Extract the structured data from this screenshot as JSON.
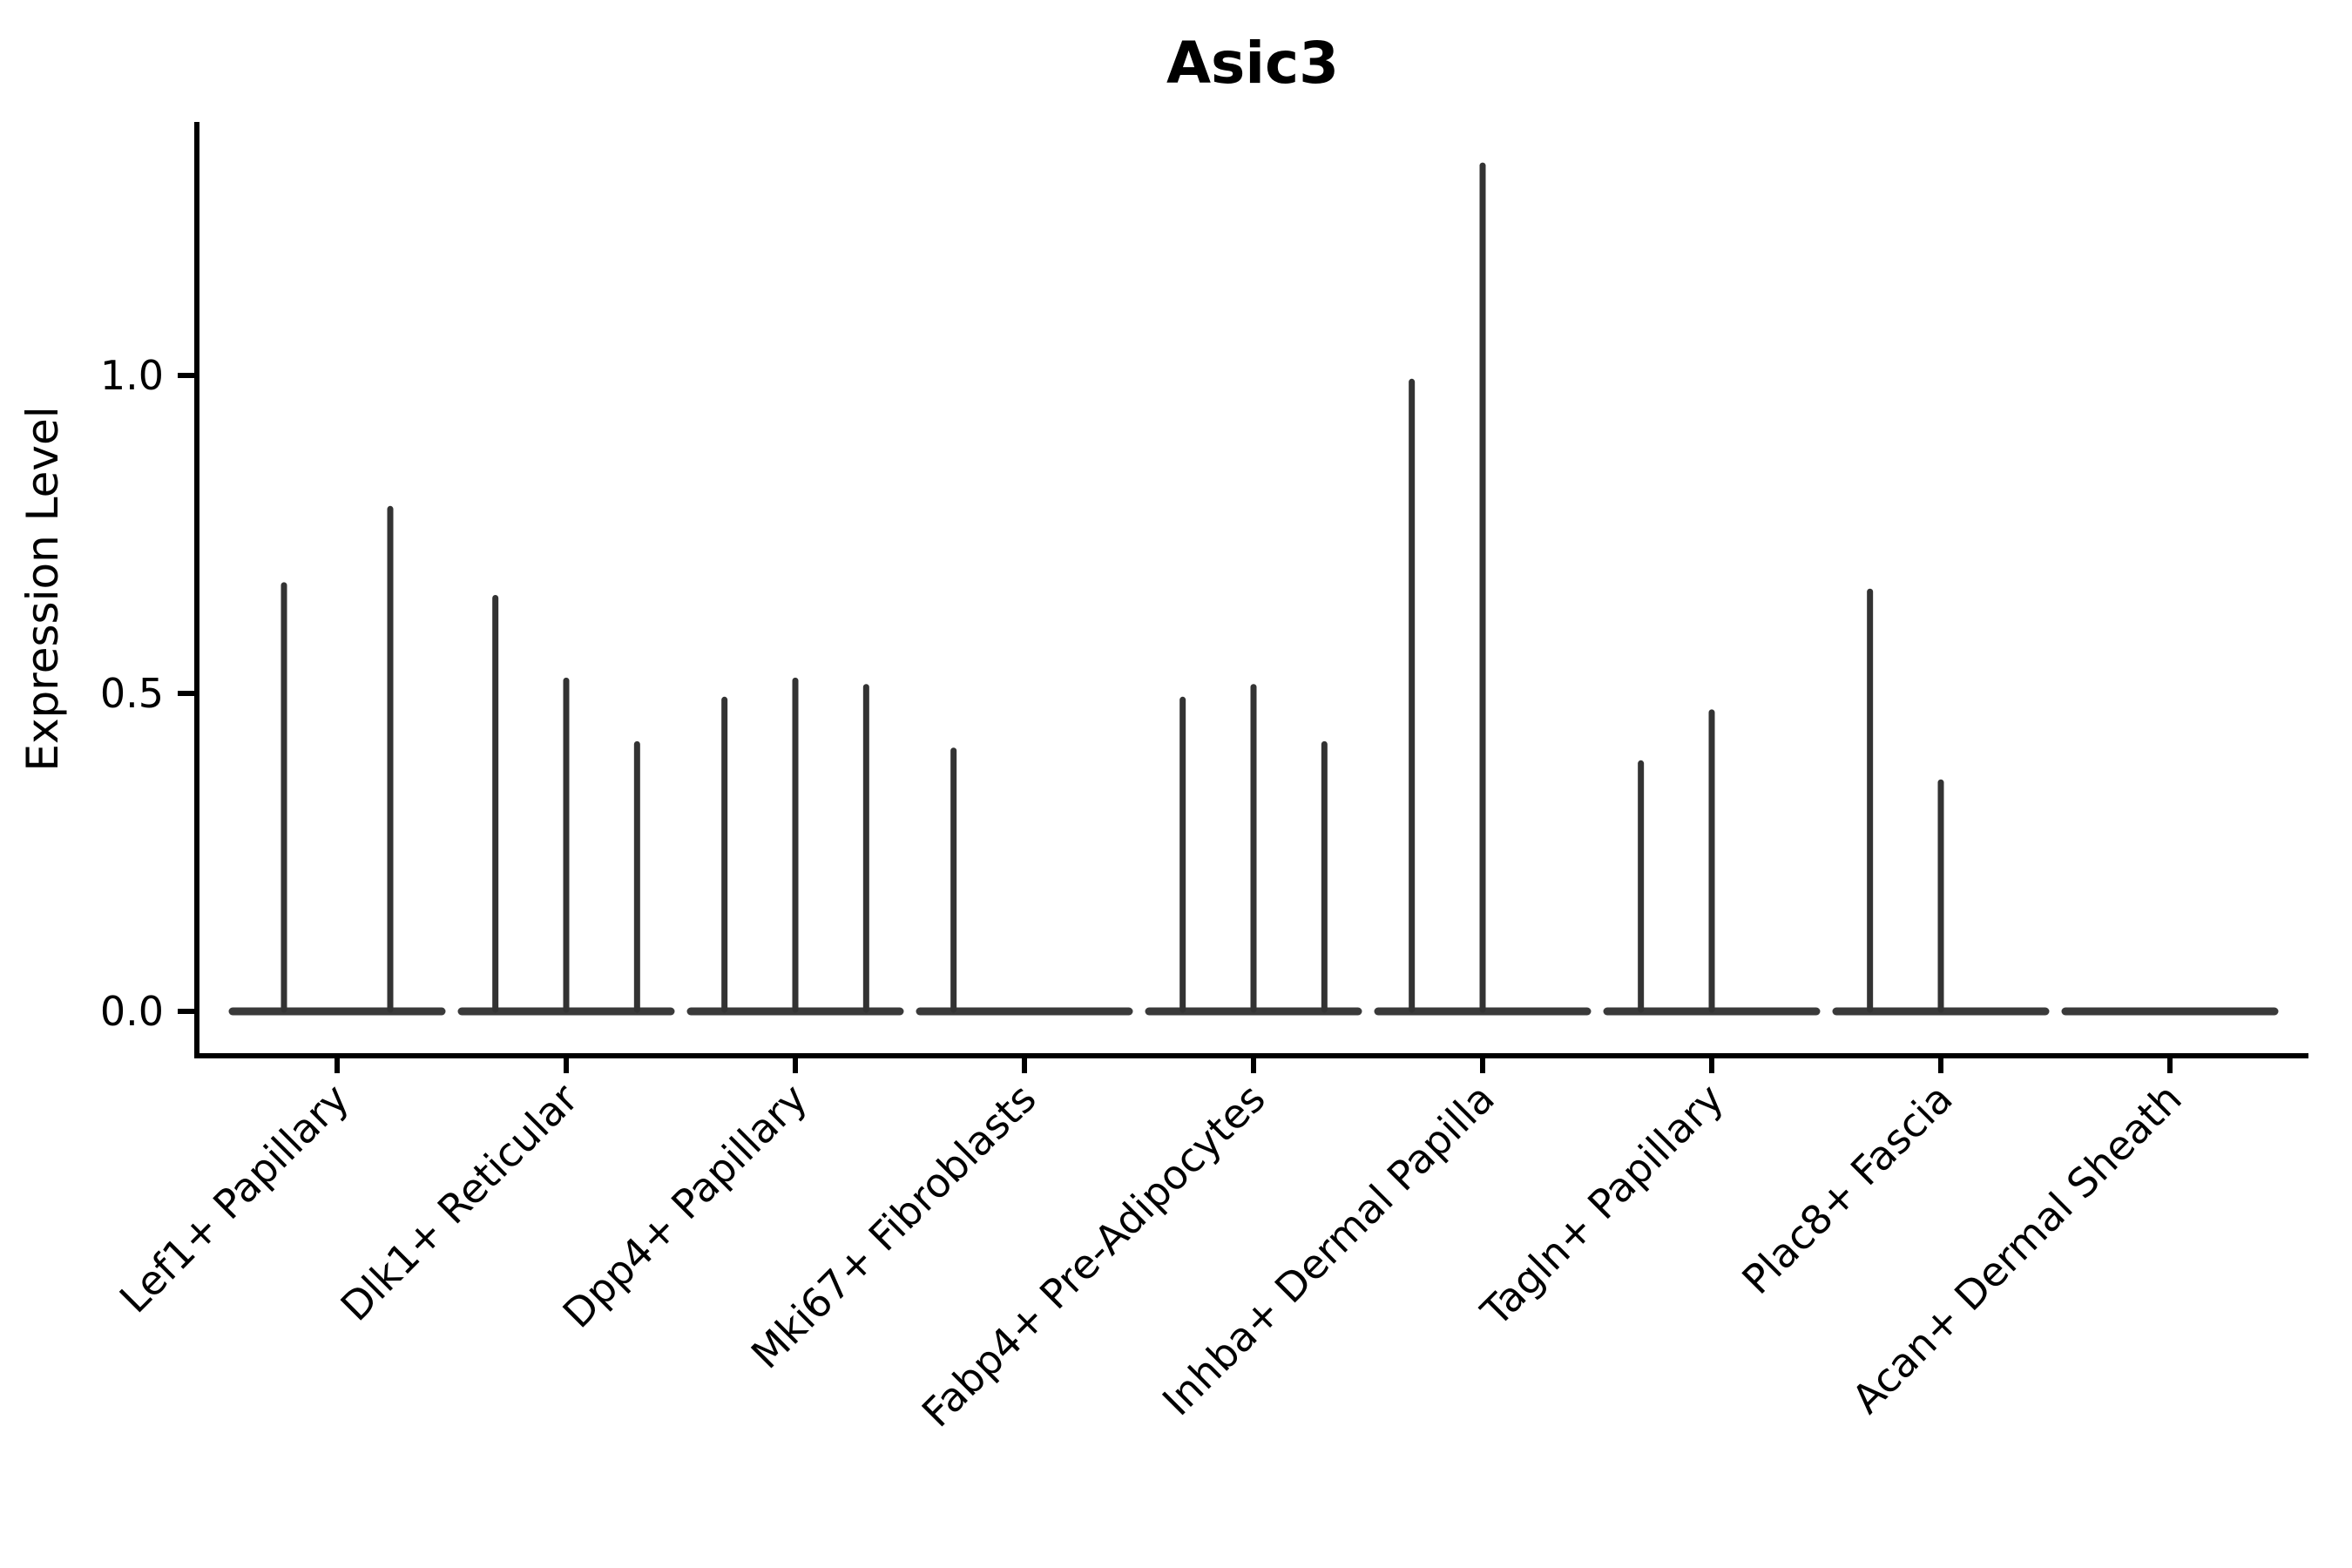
{
  "title": "Asic3",
  "y_axis": {
    "label": "Expression Level",
    "tick_labels": [
      "0.0",
      "0.5",
      "1.0"
    ],
    "tick_values": [
      0.0,
      0.5,
      1.0
    ]
  },
  "x_axis": {
    "categories": [
      "Lef1+ Papillary",
      "Dlk1+ Reticular",
      "Dpp4+ Papillary",
      "Mki67+ Fibroblasts",
      "Fabp4+ Pre-Adipocytes",
      "Inhba+ Dermal Papilla",
      "Tagln+ Papillary",
      "Plac8+ Fascia",
      "Acan+ Dermal Sheath"
    ]
  },
  "chart_data": {
    "type": "violin",
    "title": "Asic3",
    "xlabel": "",
    "ylabel": "Expression Level",
    "ylim": [
      -0.07,
      1.4
    ],
    "yticks": [
      0.0,
      0.5,
      1.0
    ],
    "ytick_labels": [
      "0.0",
      "0.5",
      "1.0"
    ],
    "grid": false,
    "legend": "none",
    "line_color": "#333333",
    "baseline_color": "#3a3a3a",
    "axis_color": "#000000",
    "note": "Collapsed violins: nearly all cells at 0 expression form a flat base at y=0; expressing cells form thin vertical spikes whose tops are the max expression per violin. 0 = violin with no spike.",
    "groups": [
      {
        "label": "Lef1+ Papillary",
        "violin_max": [
          0.67,
          0.79
        ]
      },
      {
        "label": "Dlk1+ Reticular",
        "violin_max": [
          0.65,
          0.52,
          0.42
        ]
      },
      {
        "label": "Dpp4+ Papillary",
        "violin_max": [
          0.49,
          0.52,
          0.51
        ]
      },
      {
        "label": "Mki67+ Fibroblasts",
        "violin_max": [
          0.41,
          0,
          0
        ]
      },
      {
        "label": "Fabp4+ Pre-Adipocytes",
        "violin_max": [
          0.49,
          0.51,
          0.42
        ]
      },
      {
        "label": "Inhba+ Dermal Papilla",
        "violin_max": [
          0.99,
          1.33,
          0
        ]
      },
      {
        "label": "Tagln+ Papillary",
        "violin_max": [
          0.39,
          0.47,
          0
        ]
      },
      {
        "label": "Plac8+ Fascia",
        "violin_max": [
          0.66,
          0.36,
          0
        ]
      },
      {
        "label": "Acan+ Dermal Sheath",
        "violin_max": [
          0,
          0,
          0
        ]
      }
    ]
  }
}
